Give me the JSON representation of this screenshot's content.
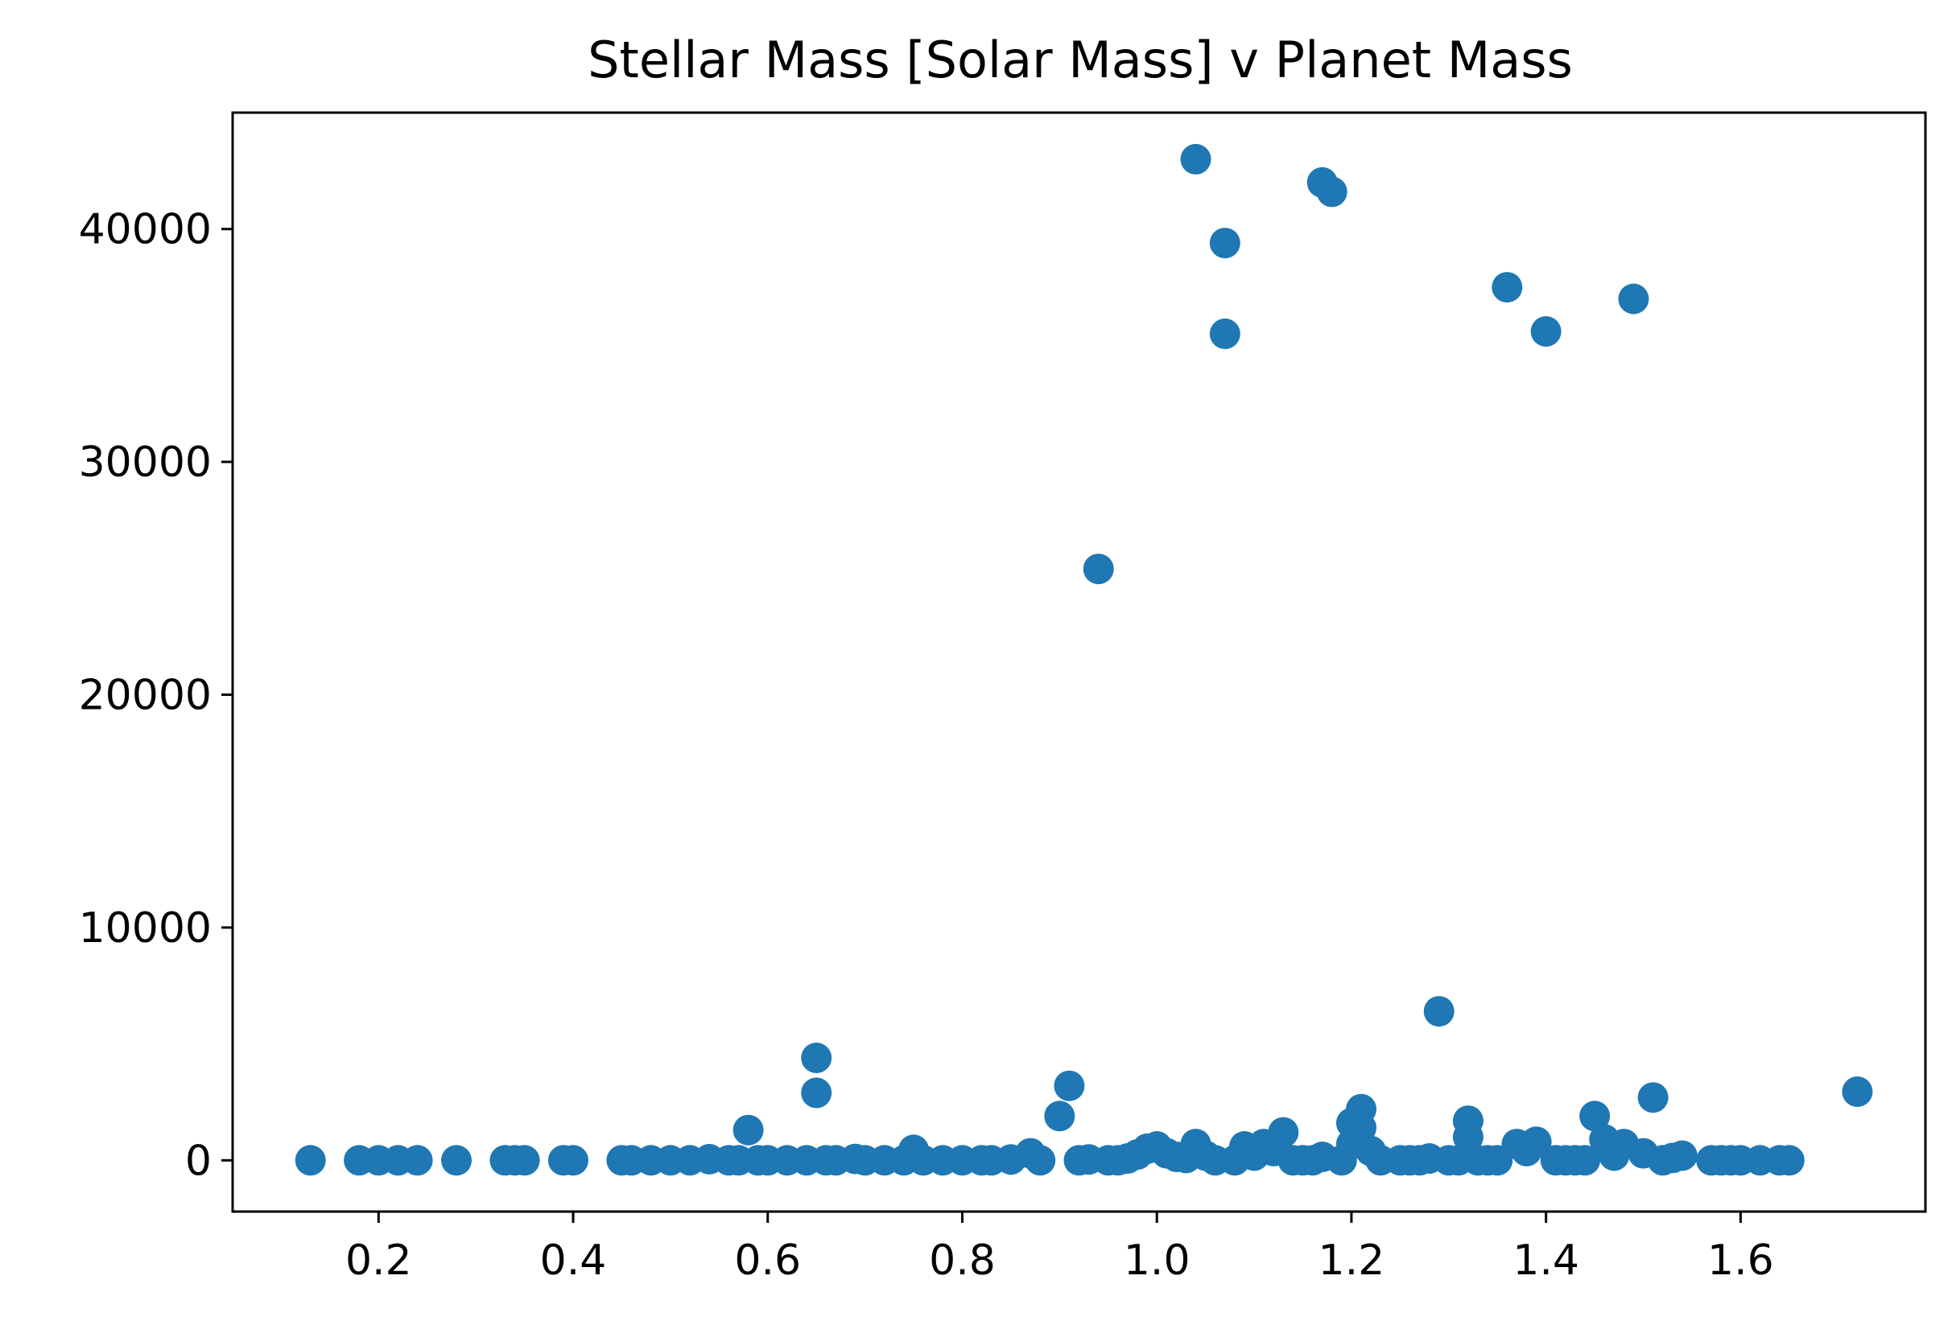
{
  "chart_data": {
    "type": "scatter",
    "title": "Stellar Mass [Solar Mass] v Planet Mass",
    "xlabel": "",
    "ylabel": "",
    "xlim": [
      0.05,
      1.79
    ],
    "ylim": [
      -2200,
      45000
    ],
    "xticks": [
      {
        "value": 0.2,
        "label": "0.2"
      },
      {
        "value": 0.4,
        "label": "0.4"
      },
      {
        "value": 0.6,
        "label": "0.6"
      },
      {
        "value": 0.8,
        "label": "0.8"
      },
      {
        "value": 1.0,
        "label": "1.0"
      },
      {
        "value": 1.2,
        "label": "1.2"
      },
      {
        "value": 1.4,
        "label": "1.4"
      },
      {
        "value": 1.6,
        "label": "1.6"
      }
    ],
    "yticks": [
      {
        "value": 0,
        "label": "0"
      },
      {
        "value": 10000,
        "label": "10000"
      },
      {
        "value": 20000,
        "label": "20000"
      },
      {
        "value": 30000,
        "label": "30000"
      },
      {
        "value": 40000,
        "label": "40000"
      }
    ],
    "grid": false,
    "legend": "none",
    "marker_color": "#1f77b4",
    "points": [
      [
        0.13,
        0
      ],
      [
        0.18,
        0
      ],
      [
        0.2,
        0
      ],
      [
        0.22,
        0
      ],
      [
        0.24,
        0
      ],
      [
        0.28,
        0
      ],
      [
        0.33,
        0
      ],
      [
        0.34,
        0
      ],
      [
        0.35,
        0
      ],
      [
        0.39,
        0
      ],
      [
        0.4,
        0
      ],
      [
        0.45,
        0
      ],
      [
        0.46,
        0
      ],
      [
        0.48,
        0
      ],
      [
        0.5,
        0
      ],
      [
        0.52,
        0
      ],
      [
        0.54,
        50
      ],
      [
        0.56,
        0
      ],
      [
        0.57,
        0
      ],
      [
        0.58,
        1300
      ],
      [
        0.59,
        0
      ],
      [
        0.6,
        0
      ],
      [
        0.62,
        0
      ],
      [
        0.64,
        0
      ],
      [
        0.65,
        4400
      ],
      [
        0.65,
        2900
      ],
      [
        0.66,
        0
      ],
      [
        0.67,
        0
      ],
      [
        0.69,
        60
      ],
      [
        0.7,
        0
      ],
      [
        0.72,
        0
      ],
      [
        0.74,
        0
      ],
      [
        0.75,
        450
      ],
      [
        0.76,
        0
      ],
      [
        0.78,
        0
      ],
      [
        0.8,
        0
      ],
      [
        0.82,
        0
      ],
      [
        0.83,
        0
      ],
      [
        0.85,
        40
      ],
      [
        0.87,
        300
      ],
      [
        0.88,
        0
      ],
      [
        0.9,
        1900
      ],
      [
        0.91,
        3200
      ],
      [
        0.92,
        0
      ],
      [
        0.93,
        40
      ],
      [
        0.94,
        25400
      ],
      [
        0.95,
        0
      ],
      [
        0.96,
        0
      ],
      [
        0.97,
        80
      ],
      [
        0.98,
        250
      ],
      [
        0.99,
        500
      ],
      [
        1.0,
        600
      ],
      [
        1.01,
        300
      ],
      [
        1.02,
        150
      ],
      [
        1.03,
        100
      ],
      [
        1.04,
        700
      ],
      [
        1.04,
        43000
      ],
      [
        1.05,
        200
      ],
      [
        1.06,
        0
      ],
      [
        1.07,
        39400
      ],
      [
        1.07,
        35500
      ],
      [
        1.08,
        0
      ],
      [
        1.09,
        600
      ],
      [
        1.1,
        200
      ],
      [
        1.11,
        700
      ],
      [
        1.12,
        400
      ],
      [
        1.13,
        1200
      ],
      [
        1.14,
        0
      ],
      [
        1.15,
        0
      ],
      [
        1.16,
        0
      ],
      [
        1.17,
        42000
      ],
      [
        1.17,
        150
      ],
      [
        1.18,
        41600
      ],
      [
        1.19,
        0
      ],
      [
        1.2,
        1600
      ],
      [
        1.2,
        700
      ],
      [
        1.21,
        2200
      ],
      [
        1.21,
        1400
      ],
      [
        1.22,
        400
      ],
      [
        1.23,
        0
      ],
      [
        1.25,
        0
      ],
      [
        1.26,
        0
      ],
      [
        1.27,
        0
      ],
      [
        1.28,
        80
      ],
      [
        1.29,
        6400
      ],
      [
        1.3,
        0
      ],
      [
        1.31,
        0
      ],
      [
        1.32,
        1700
      ],
      [
        1.32,
        1000
      ],
      [
        1.33,
        0
      ],
      [
        1.34,
        0
      ],
      [
        1.35,
        0
      ],
      [
        1.36,
        37500
      ],
      [
        1.37,
        700
      ],
      [
        1.38,
        400
      ],
      [
        1.39,
        800
      ],
      [
        1.4,
        35600
      ],
      [
        1.41,
        0
      ],
      [
        1.42,
        0
      ],
      [
        1.43,
        0
      ],
      [
        1.44,
        0
      ],
      [
        1.45,
        1900
      ],
      [
        1.46,
        900
      ],
      [
        1.47,
        200
      ],
      [
        1.48,
        700
      ],
      [
        1.49,
        37000
      ],
      [
        1.5,
        300
      ],
      [
        1.51,
        2700
      ],
      [
        1.52,
        0
      ],
      [
        1.53,
        100
      ],
      [
        1.54,
        200
      ],
      [
        1.57,
        0
      ],
      [
        1.58,
        0
      ],
      [
        1.59,
        0
      ],
      [
        1.6,
        0
      ],
      [
        1.62,
        0
      ],
      [
        1.64,
        0
      ],
      [
        1.65,
        0
      ],
      [
        1.72,
        2950
      ]
    ]
  }
}
